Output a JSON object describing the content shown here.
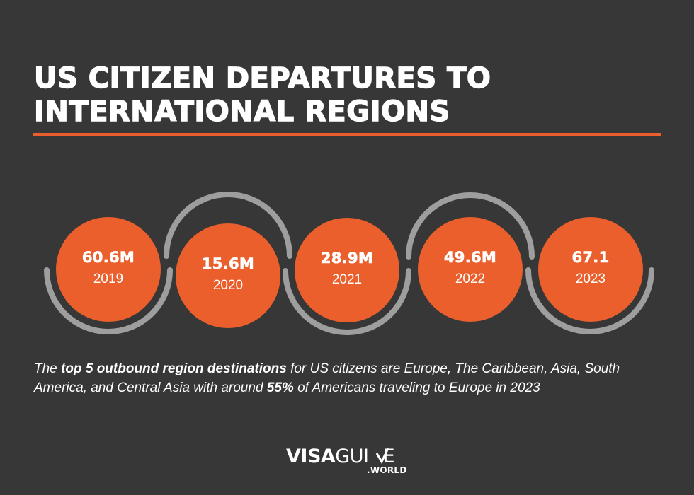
{
  "title": {
    "line1": "US CITIZEN DEPARTURES TO",
    "line2": "INTERNATIONAL REGIONS"
  },
  "colors": {
    "background": "#373737",
    "accent": "#ea5f2c",
    "arc": "#9e9e9e"
  },
  "stats": [
    {
      "value": "60.6M",
      "year": "2019"
    },
    {
      "value": "15.6M",
      "year": "2020"
    },
    {
      "value": "28.9M",
      "year": "2021"
    },
    {
      "value": "49.6M",
      "year": "2022"
    },
    {
      "value": "67.1",
      "year": "2023"
    }
  ],
  "description": {
    "p1": "The ",
    "b1": "top 5 outbound region destinations",
    "p2": " for US citizens are Europe, The Caribbean, Asia, South America, and Central Asia with around ",
    "b2": "55%",
    "p3": " of Americans traveling to Europe in 2023"
  },
  "logo": {
    "visa": "VISA",
    "guide": "GUI",
    "guide_end": "E",
    "world": ".WORLD"
  }
}
